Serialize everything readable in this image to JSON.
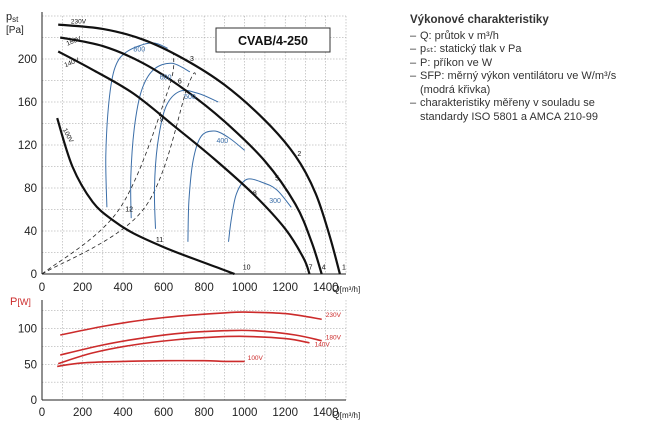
{
  "legend": {
    "title": "Výkonové charakteristiky",
    "items": [
      "Q: průtok v m³/h",
      "pₛₜ: statický tlak v Pa",
      "P: příkon ve W",
      "SFP: měrný výkon ventilátoru ve W/m³/s (modrá křivka)",
      "charakteristiky měřeny v souladu se standardy ISO 5801 a AMCA 210-99"
    ]
  },
  "colors": {
    "pressure_curves": "#111111",
    "sfp_curves": "#3b6ea8",
    "power_curves": "#cc2b2b",
    "grid": "#9a9a9a",
    "axis_label_red": "#cc2b2b"
  },
  "chart_data": [
    {
      "type": "line",
      "title": "CVAB/4-250",
      "ylabel": "pst [Pa]",
      "xlabel": "Q[m³/h]",
      "xlim": [
        0,
        1500
      ],
      "ylim": [
        0,
        240
      ],
      "xticks": [
        0,
        200,
        400,
        600,
        800,
        1000,
        1200,
        1400
      ],
      "yticks": [
        0,
        40,
        80,
        120,
        160,
        200
      ],
      "grid": true,
      "series": [
        {
          "name": "230V",
          "points": [
            [
              80,
              232
            ],
            [
              300,
              228
            ],
            [
              500,
              218
            ],
            [
              700,
              200
            ],
            [
              900,
              176
            ],
            [
              1100,
              143
            ],
            [
              1250,
              110
            ],
            [
              1350,
              75
            ],
            [
              1420,
              35
            ],
            [
              1470,
              0
            ]
          ]
        },
        {
          "name": "180V",
          "points": [
            [
              90,
              220
            ],
            [
              300,
              212
            ],
            [
              500,
              196
            ],
            [
              700,
              172
            ],
            [
              900,
              142
            ],
            [
              1100,
              105
            ],
            [
              1250,
              65
            ],
            [
              1330,
              30
            ],
            [
              1380,
              0
            ]
          ]
        },
        {
          "name": "140V",
          "points": [
            [
              80,
              207
            ],
            [
              250,
              190
            ],
            [
              450,
              168
            ],
            [
              650,
              138
            ],
            [
              850,
              107
            ],
            [
              1050,
              73
            ],
            [
              1200,
              42
            ],
            [
              1290,
              15
            ],
            [
              1320,
              0
            ]
          ]
        },
        {
          "name": "100V",
          "points": [
            [
              75,
              145
            ],
            [
              150,
              100
            ],
            [
              250,
              67
            ],
            [
              350,
              50
            ],
            [
              450,
              38
            ],
            [
              600,
              25
            ],
            [
              750,
              14
            ],
            [
              880,
              5
            ],
            [
              950,
              0
            ]
          ]
        }
      ],
      "sfp_series": [
        {
          "name": "800",
          "points": [
            [
              320,
              62
            ],
            [
              315,
              110
            ],
            [
              330,
              160
            ],
            [
              360,
              192
            ],
            [
              420,
              207
            ],
            [
              540,
              215
            ],
            [
              620,
              210
            ]
          ]
        },
        {
          "name": "600",
          "points": [
            [
              440,
              52
            ],
            [
              438,
              90
            ],
            [
              455,
              135
            ],
            [
              490,
              170
            ],
            [
              550,
              190
            ],
            [
              640,
              196
            ],
            [
              730,
              188
            ]
          ]
        },
        {
          "name": "500",
          "points": [
            [
              560,
              42
            ],
            [
              555,
              80
            ],
            [
              570,
              120
            ],
            [
              610,
              155
            ],
            [
              680,
              170
            ],
            [
              770,
              168
            ],
            [
              870,
              160
            ]
          ]
        },
        {
          "name": "400",
          "points": [
            [
              720,
              30
            ],
            [
              725,
              68
            ],
            [
              745,
              105
            ],
            [
              785,
              128
            ],
            [
              850,
              133
            ],
            [
              920,
              127
            ],
            [
              1000,
              115
            ]
          ]
        },
        {
          "name": "300",
          "points": [
            [
              920,
              30
            ],
            [
              935,
              52
            ],
            [
              960,
              75
            ],
            [
              1010,
              88
            ],
            [
              1090,
              85
            ],
            [
              1160,
              78
            ],
            [
              1230,
              62
            ]
          ]
        }
      ],
      "system_lines": [
        {
          "name": "3",
          "points": [
            [
              0,
              0
            ],
            [
              380,
              60
            ],
            [
              620,
              170
            ],
            [
              650,
              205
            ]
          ]
        },
        {
          "name": "6",
          "points": [
            [
              0,
              0
            ],
            [
              500,
              60
            ],
            [
              720,
              175
            ],
            [
              760,
              185
            ]
          ]
        }
      ],
      "point_labels": [
        "1",
        "2",
        "3",
        "4",
        "5",
        "6",
        "7",
        "8",
        "9",
        "10",
        "11",
        "12"
      ]
    },
    {
      "type": "line",
      "ylabel": "P[W]",
      "xlabel": "Q[m³/h]",
      "xlim": [
        0,
        1500
      ],
      "ylim": [
        0,
        140
      ],
      "xticks": [
        0,
        200,
        400,
        600,
        800,
        1000,
        1200,
        1400
      ],
      "yticks": [
        0,
        50,
        100
      ],
      "grid": true,
      "series": [
        {
          "name": "230V",
          "points": [
            [
              90,
              91
            ],
            [
              300,
              103
            ],
            [
              500,
              112
            ],
            [
              700,
              118
            ],
            [
              900,
              122
            ],
            [
              1000,
              123
            ],
            [
              1200,
              121
            ],
            [
              1380,
              113
            ]
          ]
        },
        {
          "name": "180V",
          "points": [
            [
              90,
              63
            ],
            [
              300,
              77
            ],
            [
              500,
              87
            ],
            [
              700,
              94
            ],
            [
              900,
              97
            ],
            [
              1050,
              97
            ],
            [
              1250,
              91
            ],
            [
              1380,
              83
            ]
          ]
        },
        {
          "name": "140V",
          "points": [
            [
              80,
              51
            ],
            [
              250,
              66
            ],
            [
              450,
              77
            ],
            [
              650,
              84
            ],
            [
              850,
              88
            ],
            [
              1000,
              89
            ],
            [
              1200,
              86
            ],
            [
              1320,
              80
            ]
          ]
        },
        {
          "name": "100V",
          "points": [
            [
              75,
              47
            ],
            [
              200,
              52
            ],
            [
              400,
              54
            ],
            [
              600,
              55
            ],
            [
              800,
              55
            ],
            [
              900,
              54
            ],
            [
              1000,
              54
            ]
          ]
        }
      ]
    }
  ]
}
